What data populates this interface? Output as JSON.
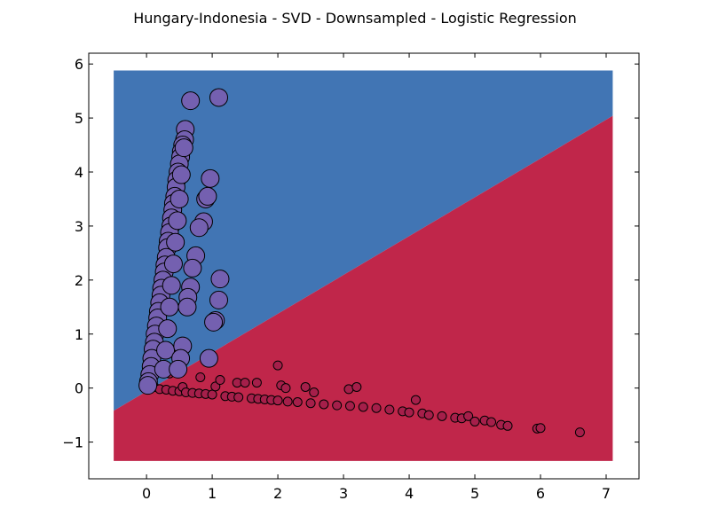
{
  "chart_data": {
    "type": "scatter",
    "title": "Hungary-Indonesia - SVD - Downsampled - Logistic Regression",
    "xlabel": "",
    "ylabel": "",
    "xlim": [
      -0.88,
      7.5
    ],
    "ylim": [
      -1.68,
      6.2
    ],
    "xticks": [
      0,
      1,
      2,
      3,
      4,
      5,
      6,
      7
    ],
    "yticks": [
      -1,
      0,
      1,
      2,
      3,
      4,
      5,
      6
    ],
    "xtick_labels": [
      "0",
      "1",
      "2",
      "3",
      "4",
      "5",
      "6",
      "7"
    ],
    "ytick_labels": [
      "−1",
      "0",
      "1",
      "2",
      "3",
      "4",
      "5",
      "6"
    ],
    "grid": false,
    "decision_region": {
      "extent_x": [
        -0.5,
        7.1
      ],
      "extent_y": [
        -1.35,
        5.88
      ],
      "boundary_line": [
        [
          -0.5,
          -0.42
        ],
        [
          7.1,
          5.04
        ]
      ],
      "above_color": "#4175b4",
      "below_color": "#c0264a"
    },
    "series": [
      {
        "name": "class A",
        "marker_color": "#7460b0",
        "marker_size": "large",
        "points": [
          [
            0.67,
            5.32
          ],
          [
            1.1,
            5.38
          ],
          [
            0.59,
            4.79
          ],
          [
            0.58,
            4.6
          ],
          [
            0.55,
            4.5
          ],
          [
            0.53,
            4.38
          ],
          [
            0.52,
            4.28
          ],
          [
            0.5,
            4.15
          ],
          [
            0.48,
            4.0
          ],
          [
            0.46,
            3.85
          ],
          [
            0.45,
            3.72
          ],
          [
            0.43,
            3.55
          ],
          [
            0.41,
            3.42
          ],
          [
            0.4,
            3.3
          ],
          [
            0.38,
            3.15
          ],
          [
            0.37,
            3.0
          ],
          [
            0.35,
            2.88
          ],
          [
            0.33,
            2.72
          ],
          [
            0.32,
            2.6
          ],
          [
            0.3,
            2.42
          ],
          [
            0.28,
            2.28
          ],
          [
            0.27,
            2.15
          ],
          [
            0.25,
            2.0
          ],
          [
            0.23,
            1.85
          ],
          [
            0.22,
            1.72
          ],
          [
            0.2,
            1.58
          ],
          [
            0.18,
            1.42
          ],
          [
            0.17,
            1.3
          ],
          [
            0.15,
            1.15
          ],
          [
            0.13,
            1.0
          ],
          [
            0.12,
            0.85
          ],
          [
            0.1,
            0.72
          ],
          [
            0.08,
            0.55
          ],
          [
            0.07,
            0.4
          ],
          [
            0.05,
            0.25
          ],
          [
            0.03,
            0.12
          ],
          [
            0.02,
            0.05
          ],
          [
            0.57,
            4.45
          ],
          [
            0.53,
            3.95
          ],
          [
            0.5,
            3.5
          ],
          [
            0.47,
            3.1
          ],
          [
            0.44,
            2.7
          ],
          [
            0.41,
            2.3
          ],
          [
            0.38,
            1.9
          ],
          [
            0.35,
            1.5
          ],
          [
            0.32,
            1.1
          ],
          [
            0.29,
            0.7
          ],
          [
            0.26,
            0.35
          ],
          [
            0.97,
            3.88
          ],
          [
            0.9,
            3.5
          ],
          [
            0.93,
            3.55
          ],
          [
            0.87,
            3.08
          ],
          [
            0.8,
            2.97
          ],
          [
            0.75,
            2.45
          ],
          [
            0.7,
            2.22
          ],
          [
            0.67,
            1.87
          ],
          [
            0.63,
            1.68
          ],
          [
            1.12,
            2.02
          ],
          [
            1.1,
            1.63
          ],
          [
            1.05,
            1.25
          ],
          [
            1.02,
            1.22
          ],
          [
            0.62,
            1.5
          ],
          [
            0.55,
            0.78
          ],
          [
            0.52,
            0.55
          ],
          [
            0.48,
            0.35
          ],
          [
            0.95,
            0.55
          ]
        ]
      },
      {
        "name": "class B",
        "marker_color": "#a51f4a",
        "marker_size": "small",
        "points": [
          [
            0.05,
            0.0
          ],
          [
            0.12,
            0.02
          ],
          [
            0.2,
            -0.02
          ],
          [
            0.3,
            -0.03
          ],
          [
            0.35,
            0.27
          ],
          [
            0.4,
            -0.05
          ],
          [
            0.5,
            -0.06
          ],
          [
            0.55,
            0.02
          ],
          [
            0.6,
            -0.08
          ],
          [
            0.7,
            -0.09
          ],
          [
            0.8,
            -0.1
          ],
          [
            0.82,
            0.2
          ],
          [
            0.9,
            -0.11
          ],
          [
            1.0,
            -0.12
          ],
          [
            1.05,
            0.03
          ],
          [
            1.12,
            0.15
          ],
          [
            1.2,
            -0.15
          ],
          [
            1.3,
            -0.16
          ],
          [
            1.38,
            0.1
          ],
          [
            1.4,
            -0.17
          ],
          [
            1.5,
            0.1
          ],
          [
            1.6,
            -0.19
          ],
          [
            1.68,
            0.1
          ],
          [
            1.7,
            -0.2
          ],
          [
            1.8,
            -0.21
          ],
          [
            1.9,
            -0.22
          ],
          [
            2.0,
            0.42
          ],
          [
            2.0,
            -0.23
          ],
          [
            2.05,
            0.05
          ],
          [
            2.12,
            0.0
          ],
          [
            2.15,
            -0.25
          ],
          [
            2.3,
            -0.26
          ],
          [
            2.42,
            0.02
          ],
          [
            2.5,
            -0.28
          ],
          [
            2.55,
            -0.08
          ],
          [
            2.7,
            -0.3
          ],
          [
            2.9,
            -0.32
          ],
          [
            3.08,
            -0.02
          ],
          [
            3.1,
            -0.33
          ],
          [
            3.2,
            0.02
          ],
          [
            3.3,
            -0.35
          ],
          [
            3.5,
            -0.37
          ],
          [
            3.7,
            -0.4
          ],
          [
            3.9,
            -0.43
          ],
          [
            4.0,
            -0.45
          ],
          [
            4.1,
            -0.22
          ],
          [
            4.2,
            -0.47
          ],
          [
            4.3,
            -0.5
          ],
          [
            4.5,
            -0.52
          ],
          [
            4.7,
            -0.55
          ],
          [
            4.8,
            -0.56
          ],
          [
            4.9,
            -0.52
          ],
          [
            5.0,
            -0.62
          ],
          [
            5.15,
            -0.6
          ],
          [
            5.25,
            -0.63
          ],
          [
            5.4,
            -0.68
          ],
          [
            5.5,
            -0.7
          ],
          [
            5.95,
            -0.75
          ],
          [
            6.0,
            -0.74
          ],
          [
            6.6,
            -0.82
          ]
        ]
      }
    ]
  }
}
